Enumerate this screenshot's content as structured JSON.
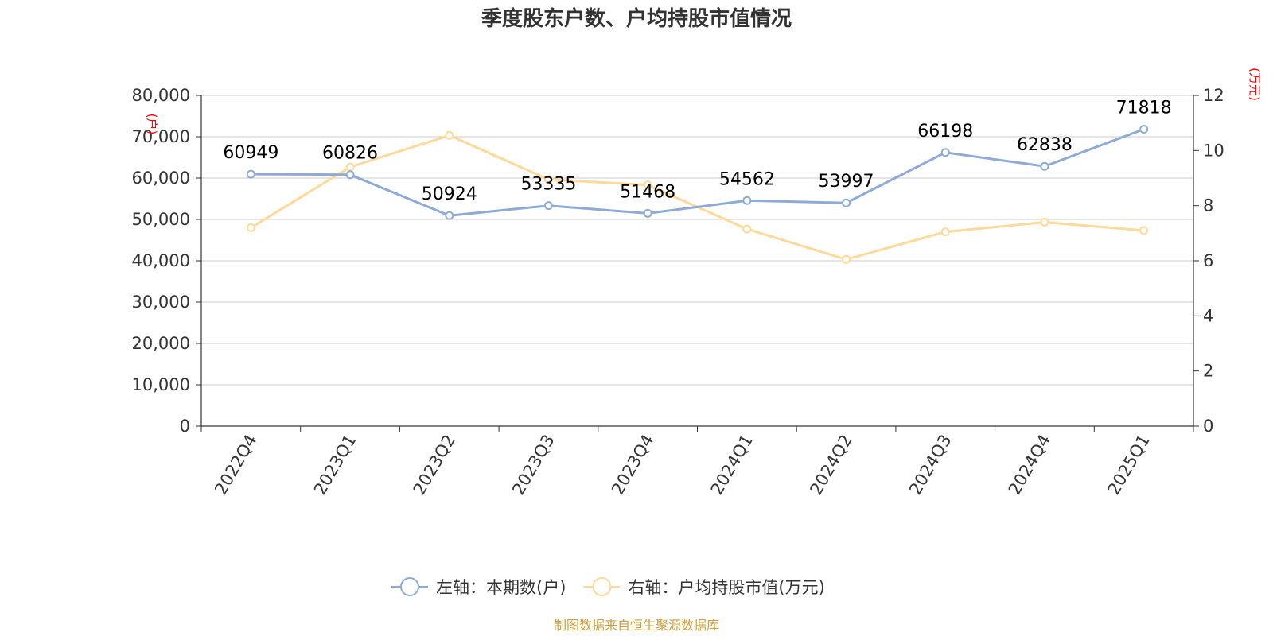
{
  "chart_data": {
    "type": "line",
    "title": "季度股东户数、户均持股市值情况",
    "categories": [
      "2022Q4",
      "2023Q1",
      "2023Q2",
      "2023Q3",
      "2023Q4",
      "2024Q1",
      "2024Q2",
      "2024Q3",
      "2024Q4",
      "2025Q1"
    ],
    "series": [
      {
        "name": "左轴：本期数(户)",
        "axis": "left",
        "color": "#8eabd8",
        "values": [
          60949,
          60826,
          50924,
          53335,
          51468,
          54562,
          53997,
          66198,
          62838,
          71818
        ],
        "labels": [
          "60949",
          "60826",
          "50924",
          "53335",
          "51468",
          "54562",
          "53997",
          "66198",
          "62838",
          "71818"
        ]
      },
      {
        "name": "右轴：户均持股市值(万元)",
        "axis": "right",
        "color": "#fdd99a",
        "values": [
          7.2,
          9.4,
          10.55,
          8.95,
          8.75,
          7.15,
          6.05,
          7.05,
          7.4,
          7.1
        ]
      }
    ],
    "left_axis": {
      "unit": "(户)",
      "ylim": [
        0,
        80000
      ],
      "ticks": [
        "0",
        "10,000",
        "20,000",
        "30,000",
        "40,000",
        "50,000",
        "60,000",
        "70,000",
        "80,000"
      ]
    },
    "right_axis": {
      "unit": "(万元)",
      "ylim": [
        0,
        12
      ],
      "ticks": [
        "0",
        "2",
        "4",
        "6",
        "8",
        "10",
        "12"
      ]
    },
    "grid": true,
    "legend_position": "bottom-center"
  },
  "footer": {
    "source": "制图数据来自恒生聚源数据库"
  }
}
